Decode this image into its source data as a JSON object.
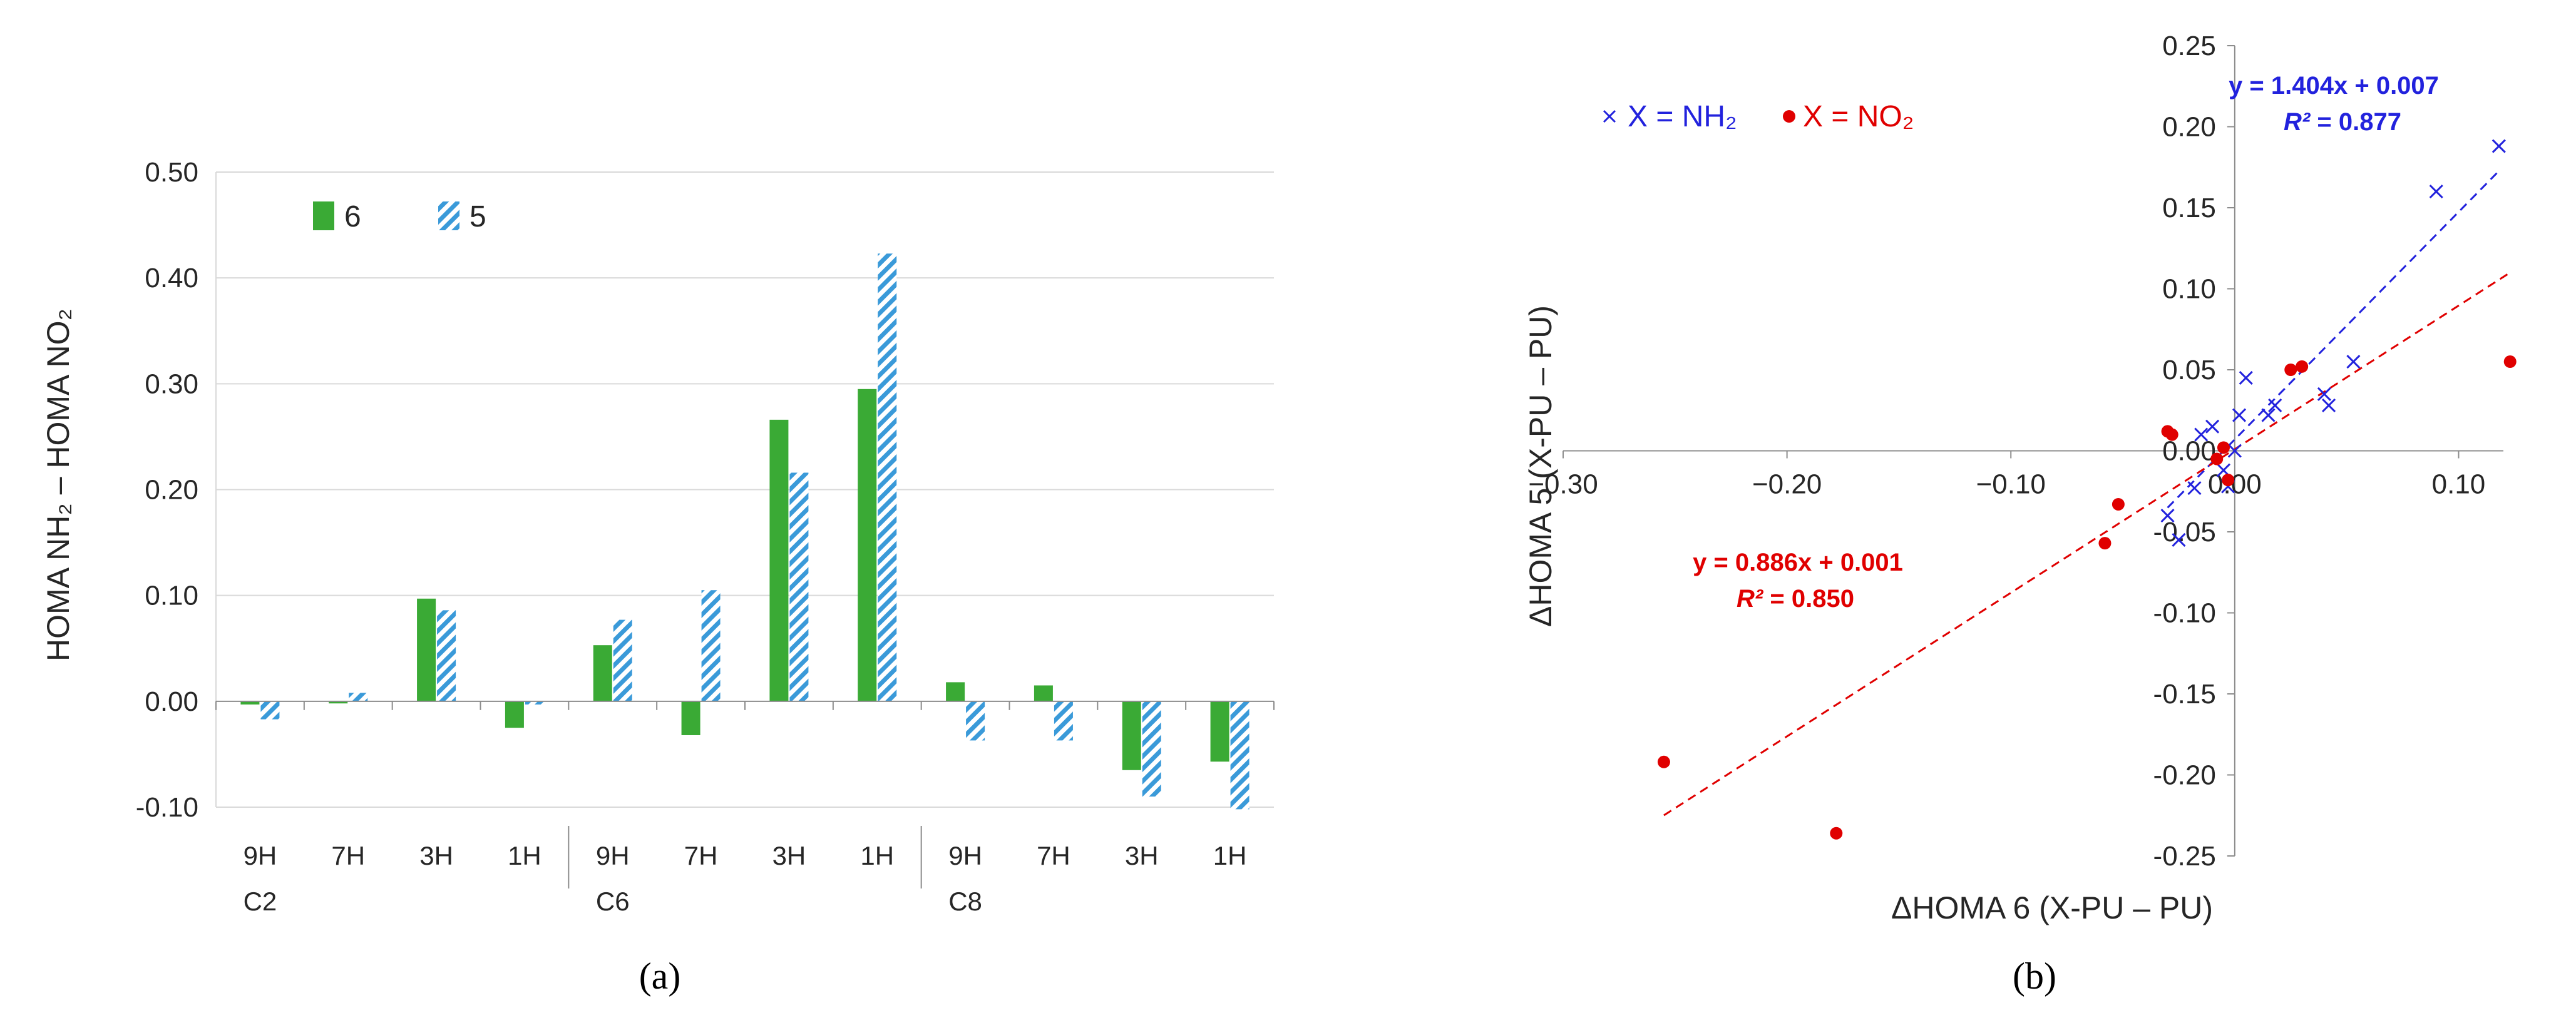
{
  "panels": {
    "a": "(a)",
    "b": "(b)"
  },
  "colors": {
    "green": "#3aaa35",
    "hatch_blue": "#3a9ad9",
    "nh2_blue": "#2222dd",
    "no2_red": "#e00000",
    "grid": "#d9d9d9",
    "axis": "#8c8c8c"
  },
  "chart_data": [
    {
      "type": "bar",
      "ylabel": "HOMA NH₂ – HOMA NO₂",
      "ylim": [
        -0.1,
        0.5
      ],
      "yticks": [
        "0.50",
        "0.40",
        "0.30",
        "0.20",
        "0.10",
        "0.00",
        "-0.10"
      ],
      "grid": true,
      "legend_position": "top-left",
      "categories": [
        "9H",
        "7H",
        "3H",
        "1H",
        "9H",
        "7H",
        "3H",
        "1H",
        "9H",
        "7H",
        "3H",
        "1H"
      ],
      "groups": [
        "C2",
        "C6",
        "C8"
      ],
      "series": [
        {
          "name": "6",
          "style": "solid",
          "values": [
            -0.003,
            -0.002,
            0.097,
            -0.025,
            0.053,
            -0.032,
            0.266,
            0.295,
            0.018,
            0.015,
            -0.065,
            -0.057
          ]
        },
        {
          "name": "5",
          "style": "hatched",
          "values": [
            -0.017,
            0.008,
            0.086,
            -0.003,
            0.077,
            0.105,
            0.216,
            0.423,
            -0.037,
            -0.037,
            -0.09,
            -0.102
          ]
        }
      ]
    },
    {
      "type": "scatter",
      "xlabel": "ΔHOMA 6 (X-PU – PU)",
      "ylabel": "ΔHOMA 5 (X-PU – PU)",
      "xlim": [
        -0.3,
        0.12
      ],
      "ylim": [
        -0.25,
        0.25
      ],
      "xticks": [
        {
          "v": -0.3,
          "label": "−0.30"
        },
        {
          "v": -0.2,
          "label": "−0.20"
        },
        {
          "v": -0.1,
          "label": "−0.10"
        },
        {
          "v": 0.0,
          "label": "0.00"
        },
        {
          "v": 0.1,
          "label": "0.10"
        }
      ],
      "yticks": [
        {
          "v": 0.25,
          "label": "0.25"
        },
        {
          "v": 0.2,
          "label": "0.20"
        },
        {
          "v": 0.15,
          "label": "0.15"
        },
        {
          "v": 0.1,
          "label": "0.10"
        },
        {
          "v": 0.05,
          "label": "0.05"
        },
        {
          "v": 0.0,
          "label": "0.00"
        },
        {
          "v": -0.05,
          "label": "-0.05"
        },
        {
          "v": -0.1,
          "label": "-0.10"
        },
        {
          "v": -0.15,
          "label": "-0.15"
        },
        {
          "v": -0.2,
          "label": "-0.20"
        },
        {
          "v": -0.25,
          "label": "-0.25"
        }
      ],
      "series": [
        {
          "name": "X = NH₂",
          "marker": "x",
          "points": [
            [
              -0.025,
              -0.055
            ],
            [
              -0.03,
              -0.04
            ],
            [
              -0.018,
              -0.023
            ],
            [
              -0.015,
              0.01
            ],
            [
              -0.01,
              0.015
            ],
            [
              -0.005,
              -0.012
            ],
            [
              -0.003,
              -0.022
            ],
            [
              0.0,
              0.0
            ],
            [
              0.002,
              0.022
            ],
            [
              0.005,
              0.045
            ],
            [
              0.015,
              0.022
            ],
            [
              0.018,
              0.028
            ],
            [
              0.04,
              0.035
            ],
            [
              0.042,
              0.028
            ],
            [
              0.053,
              0.055
            ],
            [
              0.09,
              0.16
            ],
            [
              0.118,
              0.188
            ]
          ],
          "fit": {
            "slope": 1.404,
            "intercept": 0.007,
            "range": [
              -0.03,
              0.118
            ]
          },
          "equation": "y = 1.404x + 0.007",
          "r2_label": "R²",
          "r2_value": " = 0.877"
        },
        {
          "name": "X = NO₂",
          "marker": "dot",
          "points": [
            [
              -0.255,
              -0.192
            ],
            [
              -0.178,
              -0.236
            ],
            [
              -0.058,
              -0.057
            ],
            [
              -0.052,
              -0.033
            ],
            [
              -0.03,
              0.012
            ],
            [
              -0.028,
              0.01
            ],
            [
              -0.008,
              -0.005
            ],
            [
              -0.005,
              0.002
            ],
            [
              -0.003,
              -0.018
            ],
            [
              0.025,
              0.05
            ],
            [
              0.03,
              0.052
            ],
            [
              0.123,
              0.055
            ]
          ],
          "fit": {
            "slope": 0.886,
            "intercept": 0.001,
            "range": [
              -0.255,
              0.123
            ]
          },
          "equation": "y = 0.886x + 0.001",
          "r2_label": "R²",
          "r2_value": " = 0.850"
        }
      ]
    }
  ]
}
